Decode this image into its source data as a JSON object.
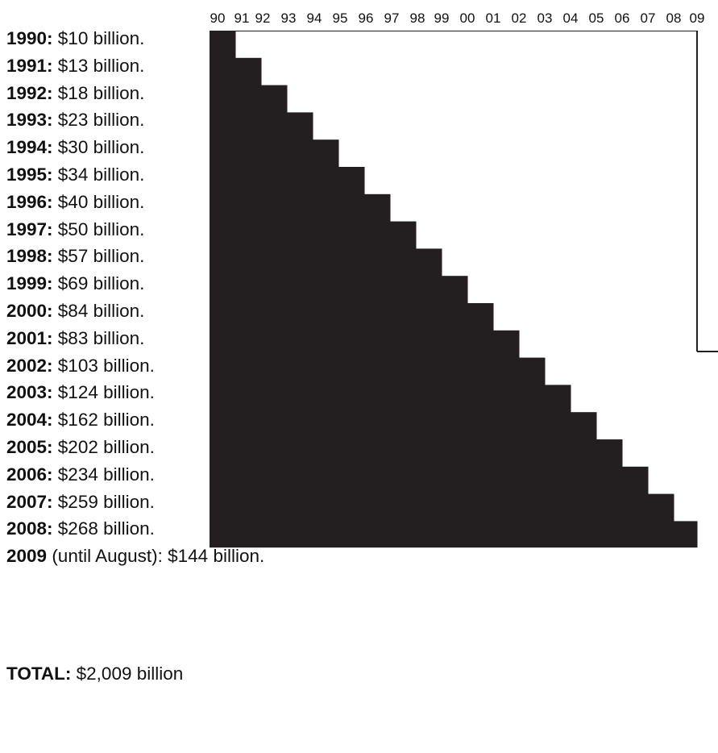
{
  "chart_data": {
    "type": "bar",
    "x_tick_labels": [
      "90",
      "91",
      "92",
      "93",
      "94",
      "95",
      "96",
      "97",
      "98",
      "99",
      "00",
      "01",
      "02",
      "03",
      "04",
      "05",
      "06",
      "07",
      "08",
      "09"
    ],
    "rows": [
      {
        "year": "1990",
        "suffix": ":",
        "text": " $10 billion.",
        "value": 10
      },
      {
        "year": "1991",
        "suffix": ":",
        "text": " $13 billion.",
        "value": 13
      },
      {
        "year": "1992",
        "suffix": ":",
        "text": " $18 billion.",
        "value": 18
      },
      {
        "year": "1993",
        "suffix": ":",
        "text": " $23 billion.",
        "value": 23
      },
      {
        "year": "1994",
        "suffix": ":",
        "text": " $30 billion.",
        "value": 30
      },
      {
        "year": "1995",
        "suffix": ":",
        "text": " $34 billion.",
        "value": 34
      },
      {
        "year": "1996",
        "suffix": ":",
        "text": " $40 billion.",
        "value": 40
      },
      {
        "year": "1997",
        "suffix": ":",
        "text": " $50 billion.",
        "value": 50
      },
      {
        "year": "1998",
        "suffix": ":",
        "text": " $57 billion.",
        "value": 57
      },
      {
        "year": "1999",
        "suffix": ":",
        "text": " $69 billion.",
        "value": 69
      },
      {
        "year": "2000",
        "suffix": ":",
        "text": " $84 billion.",
        "value": 84
      },
      {
        "year": "2001",
        "suffix": ":",
        "text": " $83 billion.",
        "value": 83
      },
      {
        "year": "2002",
        "suffix": ":",
        "text": " $103 billion.",
        "value": 103
      },
      {
        "year": "2003",
        "suffix": ":",
        "text": " $124 billion.",
        "value": 124
      },
      {
        "year": "2004",
        "suffix": ":",
        "text": " $162 billion.",
        "value": 162
      },
      {
        "year": "2005",
        "suffix": ":",
        "text": " $202 billion.",
        "value": 202
      },
      {
        "year": "2006",
        "suffix": ":",
        "text": " $234 billion.",
        "value": 234
      },
      {
        "year": "2007",
        "suffix": ":",
        "text": " $259 billion.",
        "value": 259
      },
      {
        "year": "2008",
        "suffix": ":",
        "text": " $268 billion.",
        "value": 268
      },
      {
        "year": "2009",
        "suffix": "",
        "text": " (until August): $144 billion.",
        "value": 144
      }
    ],
    "total": {
      "label": "TOTAL:",
      "text": " $2,009 billion"
    },
    "fill_color": "#231f20"
  }
}
